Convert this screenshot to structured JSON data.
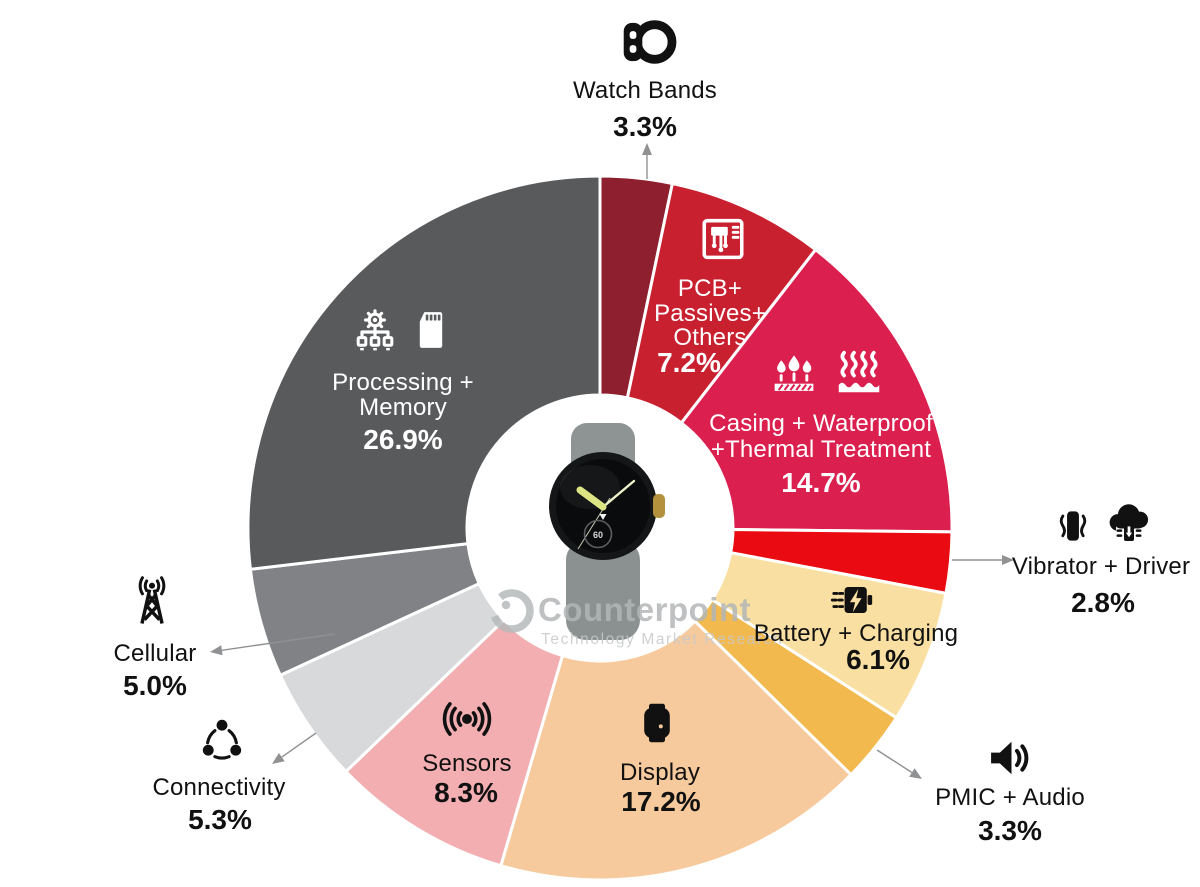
{
  "watermark": {
    "brand": "Counterpoint",
    "tagline": "Technology Market Research"
  },
  "watch": {
    "subdial_label": "60"
  },
  "chart_data": {
    "type": "pie",
    "donut": true,
    "start_angle_deg": 0,
    "direction": "clockwise",
    "unit": "%",
    "title": "",
    "legend_position": "around",
    "center_image": "google-pixel-watch",
    "segments": [
      {
        "id": "watch-bands",
        "lines": [
          "Watch Bands"
        ],
        "value": 3.3,
        "pct_label": "3.3%",
        "color": "#8E1F2F",
        "label_placement": "outside",
        "text_color": "#111111",
        "icons": [
          "watch-bands-icon"
        ]
      },
      {
        "id": "pcb-passives-others",
        "lines": [
          "PCB+",
          "Passives+",
          "Others"
        ],
        "value": 7.2,
        "pct_label": "7.2%",
        "color": "#C92030",
        "label_placement": "inside",
        "text_color": "#FFFFFF",
        "icons": [
          "pcb-icon"
        ]
      },
      {
        "id": "casing-waterproof-thermal",
        "lines": [
          "Casing + Waterproof",
          "+Thermal Treatment"
        ],
        "value": 14.7,
        "pct_label": "14.7%",
        "color": "#DB1F4E",
        "label_placement": "inside",
        "text_color": "#FFFFFF",
        "icons": [
          "waterproof-icon",
          "thermal-icon"
        ]
      },
      {
        "id": "vibrator-driver",
        "lines": [
          "Vibrator + Driver"
        ],
        "value": 2.8,
        "pct_label": "2.8%",
        "color": "#EA0B12",
        "label_placement": "outside",
        "text_color": "#111111",
        "icons": [
          "vibrator-icon",
          "driver-icon"
        ]
      },
      {
        "id": "battery-charging",
        "lines": [
          "Battery + Charging"
        ],
        "value": 6.1,
        "pct_label": "6.1%",
        "color": "#F9E0A2",
        "label_placement": "inside",
        "text_color": "#111111",
        "icons": [
          "battery-charging-icon"
        ]
      },
      {
        "id": "pmic-audio",
        "lines": [
          "PMIC + Audio"
        ],
        "value": 3.3,
        "pct_label": "3.3%",
        "color": "#F2B94E",
        "label_placement": "outside",
        "text_color": "#111111",
        "icons": [
          "speaker-icon"
        ]
      },
      {
        "id": "display",
        "lines": [
          "Display"
        ],
        "value": 17.2,
        "pct_label": "17.2%",
        "color": "#F7CA9E",
        "label_placement": "inside",
        "text_color": "#111111",
        "icons": [
          "smartwatch-display-icon"
        ]
      },
      {
        "id": "sensors",
        "lines": [
          "Sensors"
        ],
        "value": 8.3,
        "pct_label": "8.3%",
        "color": "#F3AEB2",
        "label_placement": "inside",
        "text_color": "#111111",
        "icons": [
          "sensor-waves-icon"
        ]
      },
      {
        "id": "connectivity",
        "lines": [
          "Connectivity"
        ],
        "value": 5.3,
        "pct_label": "5.3%",
        "color": "#D8D9DA",
        "label_placement": "outside",
        "text_color": "#111111",
        "icons": [
          "network-nodes-icon"
        ]
      },
      {
        "id": "cellular",
        "lines": [
          "Cellular"
        ],
        "value": 5.0,
        "pct_label": "5.0%",
        "color": "#808285",
        "label_placement": "outside",
        "text_color": "#111111",
        "icons": [
          "cell-tower-icon"
        ]
      },
      {
        "id": "processing-memory",
        "lines": [
          "Processing +",
          "Memory"
        ],
        "value": 26.9,
        "pct_label": "26.9%",
        "color": "#595A5C",
        "label_placement": "inside",
        "text_color": "#FFFFFF",
        "icons": [
          "processor-icon",
          "memory-card-icon"
        ]
      }
    ]
  }
}
